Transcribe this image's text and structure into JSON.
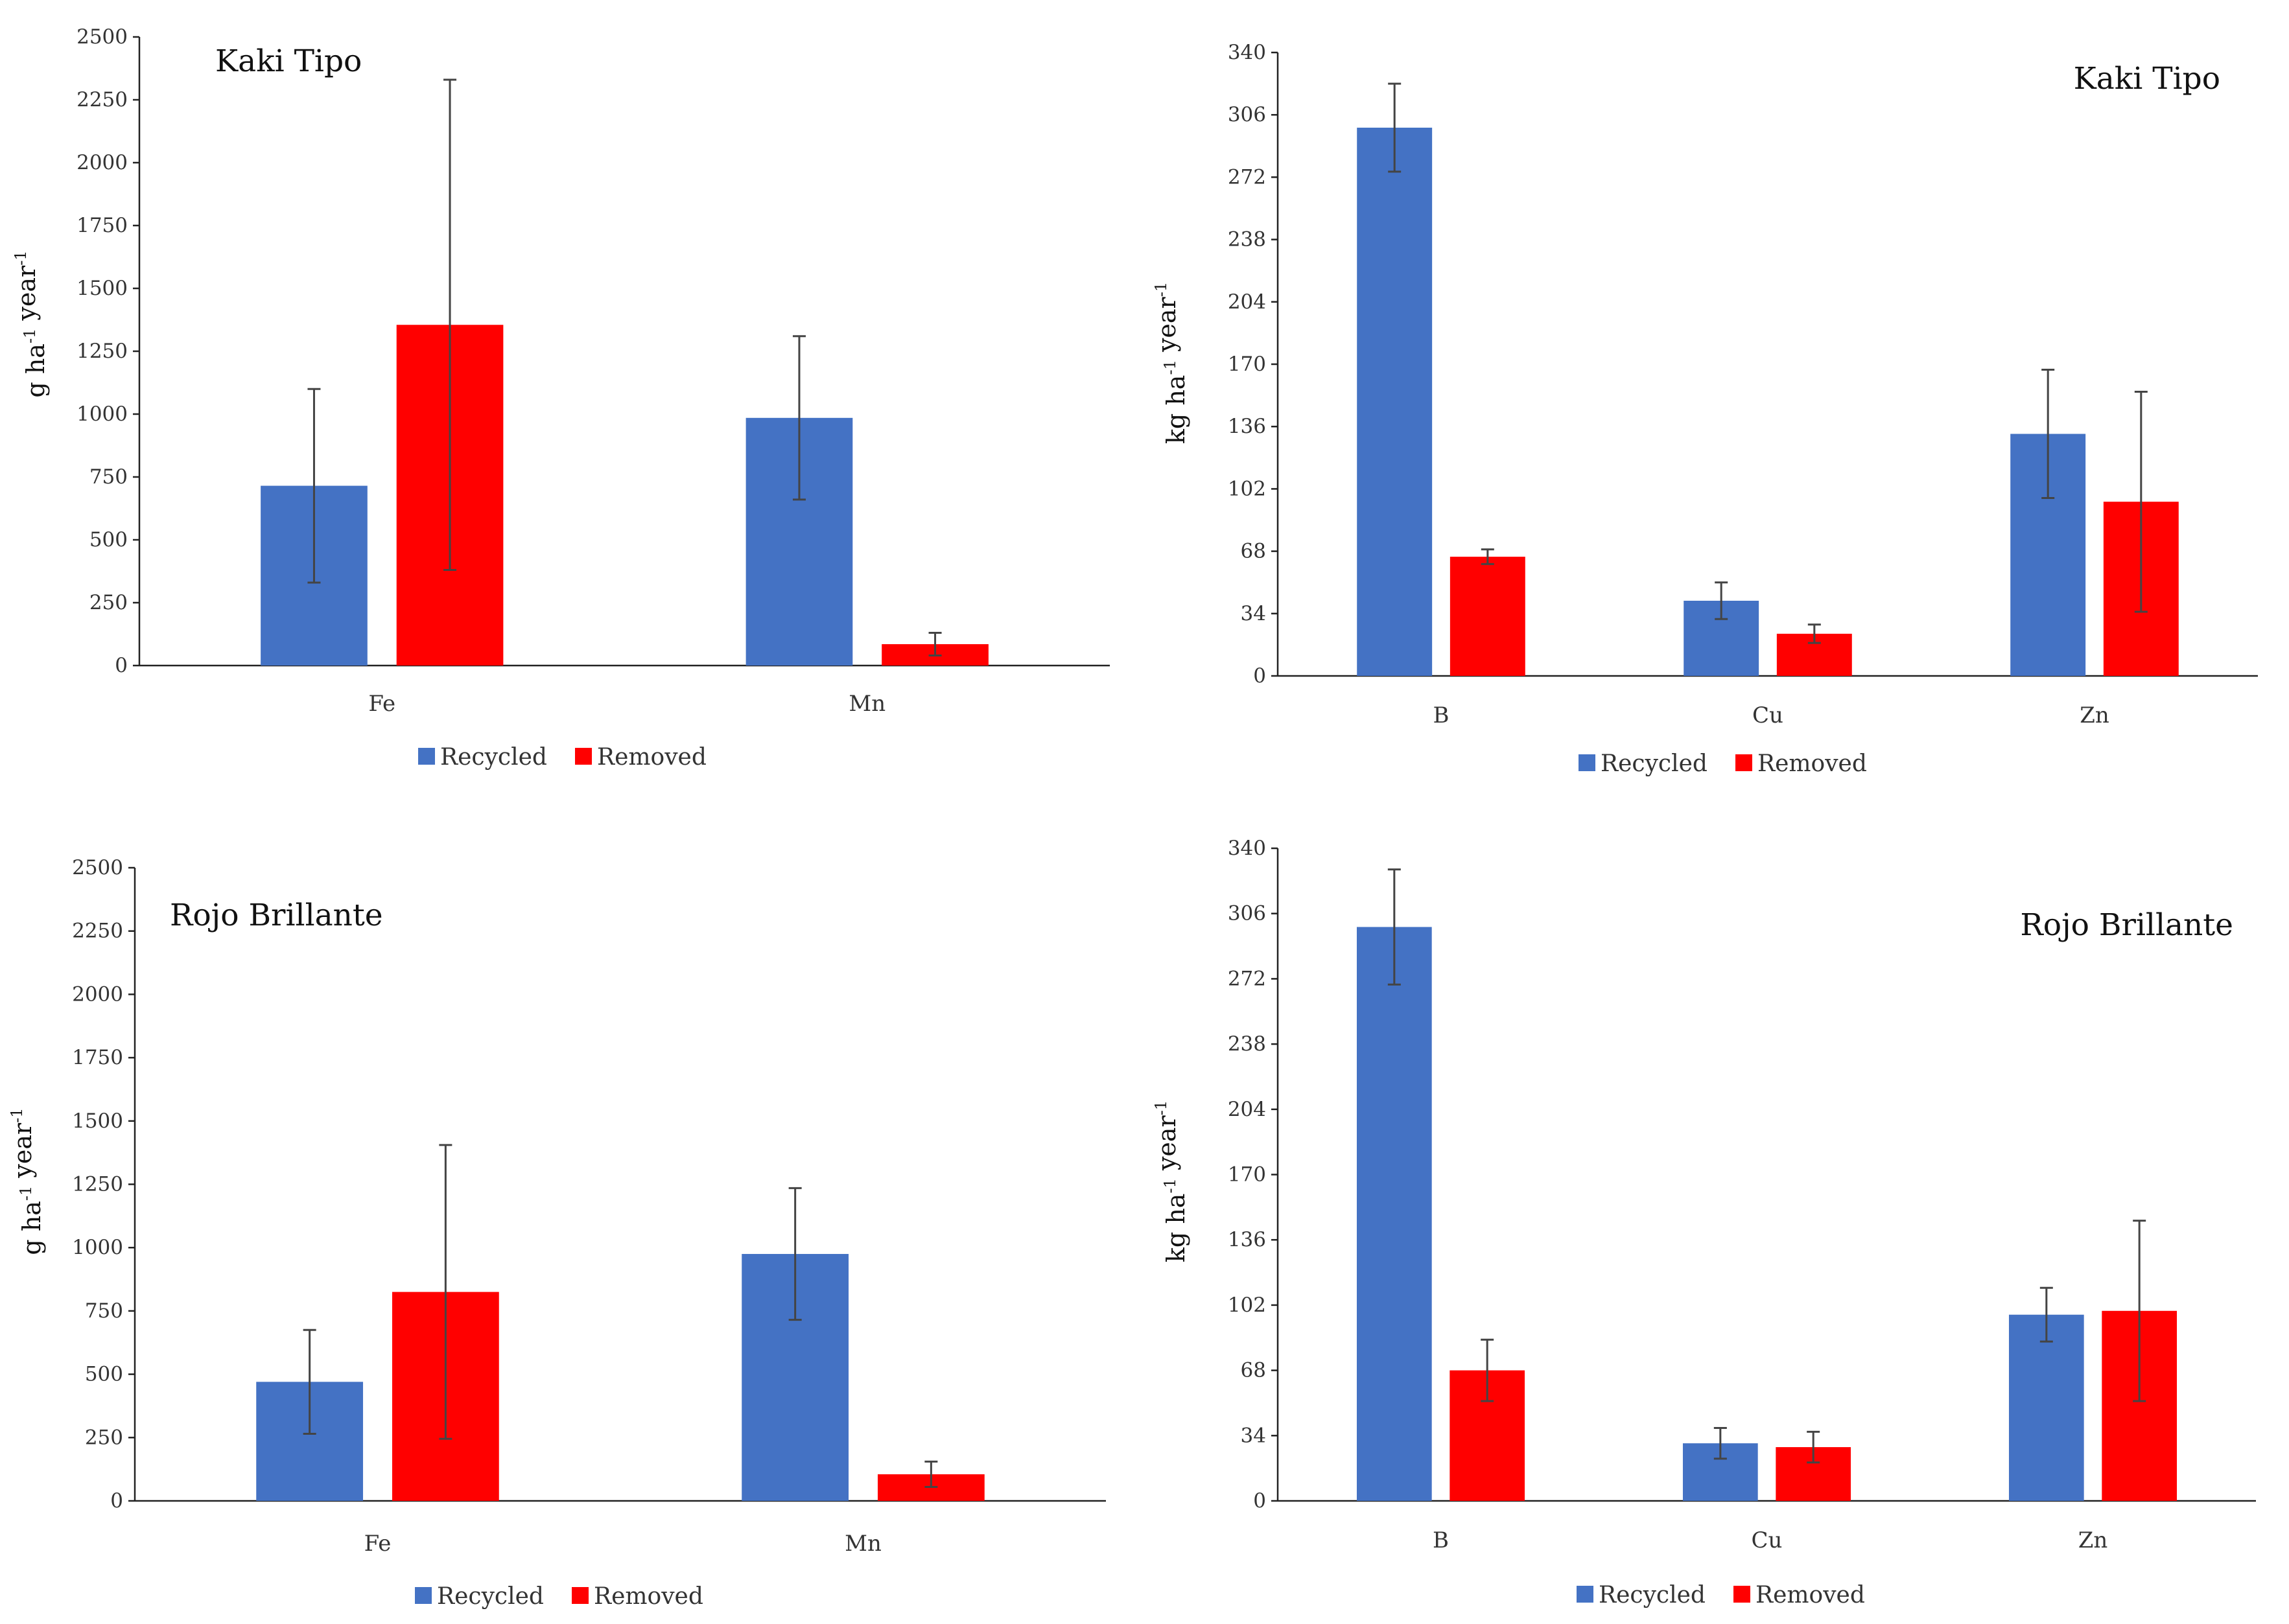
{
  "chart_data": [
    {
      "type": "bar",
      "title": "Kaki Tipo",
      "ylabel": "g ha-1 year-1",
      "ylim": [
        0,
        2500
      ],
      "yticks": [
        "0",
        "250",
        "500",
        "750",
        "1000",
        "1250",
        "1500",
        "1750",
        "2000",
        "2250",
        "2500"
      ],
      "categories": [
        "Fe",
        "Mn"
      ],
      "series": [
        {
          "name": "Recycled",
          "color": "#4472C4",
          "values": [
            715,
            985
          ],
          "errors": [
            385,
            325
          ]
        },
        {
          "name": "Removed",
          "color": "#FF0000",
          "values": [
            1355,
            85
          ],
          "errors": [
            975,
            45
          ]
        }
      ],
      "legend": [
        "Recycled",
        "Removed"
      ],
      "legend_position": "bottom"
    },
    {
      "type": "bar",
      "title": "Kaki Tipo",
      "ylabel": "kg ha-1 year-1",
      "ylim": [
        0,
        340
      ],
      "yticks": [
        "0",
        "34",
        "68",
        "102",
        "136",
        "170",
        "204",
        "238",
        "272",
        "306",
        "340"
      ],
      "categories": [
        "B",
        "Cu",
        "Zn"
      ],
      "series": [
        {
          "name": "Recycled",
          "color": "#4472C4",
          "values": [
            299,
            41,
            132
          ],
          "errors": [
            24,
            10,
            35
          ]
        },
        {
          "name": "Removed",
          "color": "#FF0000",
          "values": [
            65,
            23,
            95
          ],
          "errors": [
            4,
            5,
            60
          ]
        }
      ],
      "legend": [
        "Recycled",
        "Removed"
      ],
      "legend_position": "bottom"
    },
    {
      "type": "bar",
      "title": "Rojo Brillante",
      "ylabel": "g ha-1 year-1",
      "ylim": [
        0,
        2500
      ],
      "yticks": [
        "0",
        "250",
        "500",
        "750",
        "1000",
        "1250",
        "1500",
        "1750",
        "2000",
        "2250",
        "2500"
      ],
      "categories": [
        "Fe",
        "Mn"
      ],
      "series": [
        {
          "name": "Recycled",
          "color": "#4472C4",
          "values": [
            470,
            975
          ],
          "errors": [
            205,
            260
          ]
        },
        {
          "name": "Removed",
          "color": "#FF0000",
          "values": [
            825,
            105
          ],
          "errors": [
            580,
            50
          ]
        }
      ],
      "legend": [
        "Recycled",
        "Removed"
      ],
      "legend_position": "bottom"
    },
    {
      "type": "bar",
      "title": "Rojo Brillante",
      "ylabel": "kg ha-1 year-1",
      "ylim": [
        0,
        340
      ],
      "yticks": [
        "0",
        "34",
        "68",
        "102",
        "136",
        "170",
        "204",
        "238",
        "272",
        "306",
        "340"
      ],
      "categories": [
        "B",
        "Cu",
        "Zn"
      ],
      "series": [
        {
          "name": "Recycled",
          "color": "#4472C4",
          "values": [
            299,
            30,
            97
          ],
          "errors": [
            30,
            8,
            14
          ]
        },
        {
          "name": "Removed",
          "color": "#FF0000",
          "values": [
            68,
            28,
            99
          ],
          "errors": [
            16,
            8,
            47
          ]
        }
      ],
      "legend": [
        "Recycled",
        "Removed"
      ],
      "legend_position": "bottom"
    }
  ]
}
